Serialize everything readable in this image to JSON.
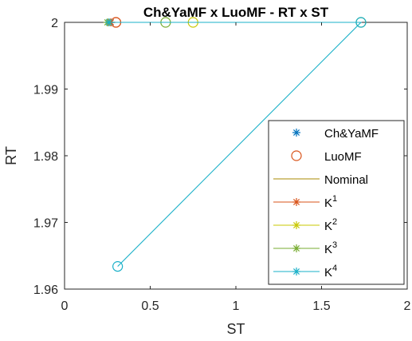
{
  "chart_data": {
    "type": "scatter",
    "title": "Ch&YaMF x LuoMF - RT  x ST",
    "xlabel": "ST",
    "ylabel": "RT",
    "xlim": [
      0,
      2
    ],
    "ylim": [
      1.96,
      2.0
    ],
    "xticks": [
      0,
      0.5,
      1,
      1.5,
      2
    ],
    "xtick_labels": [
      "0",
      "0.5",
      "1",
      "1.5",
      "2"
    ],
    "yticks": [
      1.96,
      1.97,
      1.98,
      1.99,
      2.0
    ],
    "ytick_labels": [
      "1.96",
      "1.97",
      "1.98",
      "1.99",
      "2"
    ],
    "legend_position": "bottom-right",
    "series": [
      {
        "name": "Ch&YaMF",
        "type": "marker",
        "marker": "asterisk",
        "color": "#0072BD",
        "x": [
          0.26,
          0.27
        ],
        "y": [
          2.0,
          2.0
        ]
      },
      {
        "name": "LuoMF",
        "type": "marker",
        "marker": "circle",
        "color": "#D95319",
        "x": [
          0.3
        ],
        "y": [
          2.0
        ]
      },
      {
        "name": "Nominal",
        "type": "line",
        "color": "#A88A00",
        "x": [
          0.26,
          0.3
        ],
        "y": [
          2.0,
          2.0
        ]
      },
      {
        "name": "K",
        "sup": "1",
        "type": "line-marker",
        "color": "#D95319",
        "x": [
          0.27,
          0.3
        ],
        "y": [
          2.0,
          2.0
        ]
      },
      {
        "name": "K",
        "sup": "2",
        "type": "line-marker",
        "color": "#C8C800",
        "x": [
          0.26,
          0.75
        ],
        "y": [
          2.0,
          2.0
        ]
      },
      {
        "name": "K",
        "sup": "3",
        "type": "line-marker",
        "color": "#77AC30",
        "x": [
          0.25,
          0.59,
          1.73
        ],
        "y": [
          2.0,
          2.0,
          2.0
        ]
      },
      {
        "name": "K",
        "sup": "4",
        "type": "line-marker",
        "color": "#1AB0C8",
        "x": [
          0.26,
          1.73,
          0.31
        ],
        "y": [
          2.0,
          2.0,
          1.9634
        ]
      }
    ],
    "colors": {
      "axis": "#262626",
      "background": "#ffffff"
    }
  }
}
